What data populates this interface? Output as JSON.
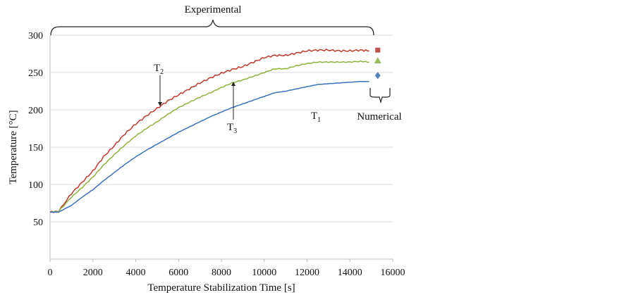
{
  "chart_data": {
    "type": "line",
    "title": "",
    "xlabel": "Temperature Stabilization Time [s]",
    "ylabel": "Temperature [°C]",
    "xlim": [
      0,
      16000
    ],
    "ylim": [
      0,
      300
    ],
    "xticks": [
      "0",
      "2000",
      "4000",
      "6000",
      "8000",
      "10000",
      "12000",
      "14000",
      "16000"
    ],
    "yticks": [
      "50",
      "100",
      "150",
      "200",
      "250",
      "300"
    ],
    "grid": "horizontal",
    "x": [
      0,
      400,
      1000,
      1500,
      2000,
      2500,
      3000,
      3500,
      4000,
      4500,
      5000,
      5500,
      6000,
      6500,
      7000,
      7500,
      8000,
      8500,
      9000,
      9500,
      10000,
      10500,
      11000,
      11500,
      12000,
      12500,
      13000,
      13500,
      14000,
      14500,
      14900
    ],
    "series": [
      {
        "name": "T2",
        "label": "T",
        "sub": "2",
        "color": "#c0392b",
        "values": [
          63,
          64,
          88,
          103,
          118,
          137,
          152,
          168,
          181,
          192,
          202,
          212,
          220,
          228,
          236,
          243,
          249,
          254,
          258,
          264,
          270,
          273,
          273,
          276,
          279,
          280,
          280,
          279,
          279,
          280,
          279
        ]
      },
      {
        "name": "T3",
        "label": "T",
        "sub": "3",
        "color": "#8db33a",
        "values": [
          63,
          64,
          83,
          96,
          110,
          126,
          140,
          153,
          165,
          175,
          184,
          194,
          203,
          210,
          217,
          223,
          230,
          236,
          240,
          245,
          250,
          255,
          255,
          259,
          262,
          264,
          264,
          264,
          264,
          265,
          264
        ]
      },
      {
        "name": "T1",
        "label": "T",
        "sub": "1",
        "color": "#3a72c0",
        "values": [
          63,
          63,
          72,
          83,
          93,
          105,
          116,
          127,
          137,
          146,
          154,
          162,
          170,
          177,
          184,
          191,
          197,
          203,
          208,
          213,
          218,
          223,
          225,
          228,
          231,
          234,
          235,
          236,
          237,
          238,
          238
        ]
      }
    ],
    "numerical": [
      {
        "series": "T2",
        "marker": "square",
        "x": 15300,
        "value": 280,
        "color": "#c0504d"
      },
      {
        "series": "T3",
        "marker": "triangle",
        "x": 15300,
        "value": 266,
        "color": "#9bbb59"
      },
      {
        "series": "T1",
        "marker": "diamond",
        "x": 15300,
        "value": 246,
        "color": "#4f81bd"
      }
    ],
    "annotations": {
      "experimental": "Experimental",
      "numerical": "Numerical"
    }
  }
}
